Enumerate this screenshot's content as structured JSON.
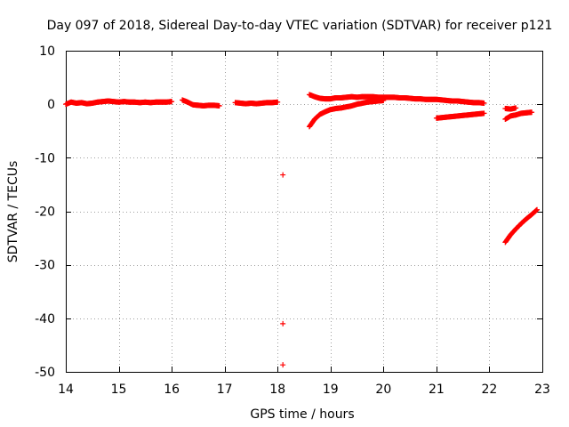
{
  "chart_data": {
    "type": "scatter",
    "title": "Day 097 of 2018, Sidereal Day-to-day VTEC variation (SDTVAR) for receiver p121",
    "xlabel": "GPS time / hours",
    "ylabel": "SDTVAR / TECUs",
    "xlim": [
      14,
      23
    ],
    "ylim": [
      -50,
      10
    ],
    "xticks": [
      "14",
      "15",
      "16",
      "17",
      "18",
      "19",
      "20",
      "21",
      "22",
      "23"
    ],
    "yticks": [
      "10",
      "0",
      "-10",
      "-20",
      "-30",
      "-40",
      "-50"
    ],
    "grid": true,
    "legend": "none",
    "marker": "plus",
    "color": "#ff0000",
    "series": [
      {
        "points": [
          [
            14.0,
            0.0
          ],
          [
            14.1,
            0.4
          ],
          [
            14.2,
            0.2
          ],
          [
            14.3,
            0.3
          ],
          [
            14.4,
            0.1
          ],
          [
            14.5,
            0.2
          ],
          [
            14.6,
            0.4
          ],
          [
            14.7,
            0.5
          ],
          [
            14.8,
            0.6
          ],
          [
            14.9,
            0.5
          ],
          [
            15.0,
            0.4
          ],
          [
            15.1,
            0.5
          ],
          [
            15.2,
            0.4
          ],
          [
            15.3,
            0.4
          ],
          [
            15.4,
            0.3
          ],
          [
            15.5,
            0.4
          ],
          [
            15.6,
            0.3
          ],
          [
            15.7,
            0.4
          ],
          [
            15.8,
            0.4
          ],
          [
            15.9,
            0.4
          ],
          [
            16.0,
            0.5
          ],
          [
            16.2,
            0.8
          ],
          [
            16.3,
            0.4
          ],
          [
            16.4,
            -0.1
          ],
          [
            16.5,
            -0.2
          ],
          [
            16.6,
            -0.3
          ],
          [
            16.7,
            -0.2
          ],
          [
            16.8,
            -0.2
          ],
          [
            16.9,
            -0.3
          ],
          [
            17.2,
            0.3
          ],
          [
            17.3,
            0.2
          ],
          [
            17.4,
            0.1
          ],
          [
            17.5,
            0.2
          ],
          [
            17.6,
            0.1
          ],
          [
            17.7,
            0.2
          ],
          [
            17.8,
            0.3
          ],
          [
            17.9,
            0.3
          ],
          [
            18.0,
            0.4
          ],
          [
            18.1,
            -13.2
          ],
          [
            18.1,
            -41.0
          ],
          [
            18.1,
            -48.7
          ],
          [
            18.6,
            1.8
          ],
          [
            18.7,
            1.4
          ],
          [
            18.8,
            1.1
          ],
          [
            18.9,
            1.0
          ],
          [
            19.0,
            1.0
          ],
          [
            19.1,
            1.2
          ],
          [
            19.2,
            1.2
          ],
          [
            19.3,
            1.3
          ],
          [
            19.4,
            1.4
          ],
          [
            19.5,
            1.3
          ],
          [
            19.6,
            1.4
          ],
          [
            19.7,
            1.4
          ],
          [
            19.8,
            1.4
          ],
          [
            19.9,
            1.3
          ],
          [
            20.0,
            1.3
          ],
          [
            20.1,
            1.3
          ],
          [
            20.2,
            1.3
          ],
          [
            20.3,
            1.2
          ],
          [
            20.4,
            1.2
          ],
          [
            20.5,
            1.1
          ],
          [
            20.6,
            1.0
          ],
          [
            20.7,
            1.0
          ],
          [
            20.8,
            0.9
          ],
          [
            20.9,
            0.9
          ],
          [
            21.0,
            0.9
          ],
          [
            21.1,
            0.8
          ],
          [
            21.2,
            0.7
          ],
          [
            21.3,
            0.6
          ],
          [
            21.4,
            0.6
          ],
          [
            21.5,
            0.5
          ],
          [
            21.6,
            0.4
          ],
          [
            21.7,
            0.3
          ],
          [
            21.8,
            0.3
          ],
          [
            21.9,
            0.2
          ],
          [
            18.6,
            -4.2
          ],
          [
            18.7,
            -2.8
          ],
          [
            18.8,
            -1.9
          ],
          [
            18.9,
            -1.4
          ],
          [
            19.0,
            -1.0
          ],
          [
            19.1,
            -0.8
          ],
          [
            19.2,
            -0.7
          ],
          [
            19.3,
            -0.5
          ],
          [
            19.4,
            -0.3
          ],
          [
            19.5,
            0.0
          ],
          [
            19.6,
            0.2
          ],
          [
            19.7,
            0.4
          ],
          [
            19.8,
            0.5
          ],
          [
            19.9,
            0.6
          ],
          [
            20.0,
            0.7
          ],
          [
            21.0,
            -2.6
          ],
          [
            21.1,
            -2.5
          ],
          [
            21.2,
            -2.4
          ],
          [
            21.3,
            -2.3
          ],
          [
            21.4,
            -2.2
          ],
          [
            21.5,
            -2.1
          ],
          [
            21.6,
            -2.0
          ],
          [
            21.7,
            -1.9
          ],
          [
            21.8,
            -1.8
          ],
          [
            21.9,
            -1.7
          ],
          [
            22.3,
            -2.8
          ],
          [
            22.4,
            -2.2
          ],
          [
            22.5,
            -2.0
          ],
          [
            22.6,
            -1.7
          ],
          [
            22.7,
            -1.6
          ],
          [
            22.8,
            -1.5
          ],
          [
            22.3,
            -0.8
          ],
          [
            22.4,
            -0.9
          ],
          [
            22.5,
            -0.7
          ],
          [
            22.3,
            -25.8
          ],
          [
            22.4,
            -24.4
          ],
          [
            22.5,
            -23.3
          ],
          [
            22.6,
            -22.3
          ],
          [
            22.7,
            -21.4
          ],
          [
            22.8,
            -20.6
          ],
          [
            22.9,
            -19.7
          ]
        ]
      }
    ]
  }
}
